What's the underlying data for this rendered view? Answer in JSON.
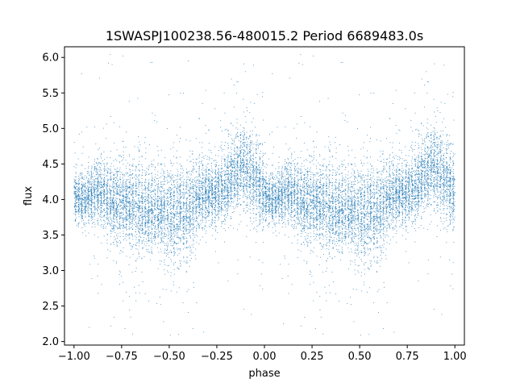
{
  "chart_data": {
    "type": "scatter",
    "title": "1SWASPJ100238.56-480015.2 Period 6689483.0s",
    "xlabel": "phase",
    "ylabel": "flux",
    "xlim": [
      -1.05,
      1.05
    ],
    "ylim": [
      1.95,
      6.15
    ],
    "x_ticks": [
      -1.0,
      -0.75,
      -0.5,
      -0.25,
      0.0,
      0.25,
      0.5,
      0.75,
      1.0
    ],
    "x_tick_labels": [
      "−1.00",
      "−0.75",
      "−0.50",
      "−0.25",
      "0.00",
      "0.25",
      "0.50",
      "0.75",
      "1.00"
    ],
    "y_ticks": [
      2.0,
      2.5,
      3.0,
      3.5,
      4.0,
      4.5,
      5.0,
      5.5,
      6.0
    ],
    "y_tick_labels": [
      "2.0",
      "2.5",
      "3.0",
      "3.5",
      "4.0",
      "4.5",
      "5.0",
      "5.5",
      "6.0"
    ],
    "grid": false,
    "marker_color": "#1f77b4",
    "series": [
      {
        "name": "",
        "profile": {
          "phase": [
            0.0,
            0.05,
            0.1,
            0.15,
            0.2,
            0.25,
            0.3,
            0.35,
            0.4,
            0.45,
            0.5,
            0.55,
            0.6,
            0.65,
            0.7,
            0.75,
            0.8,
            0.85,
            0.9,
            0.95,
            1.0
          ],
          "median_flux": [
            4.05,
            4.0,
            4.1,
            4.1,
            4.0,
            3.95,
            3.9,
            3.85,
            3.85,
            3.85,
            3.8,
            3.8,
            3.85,
            4.0,
            4.1,
            4.1,
            4.2,
            4.4,
            4.45,
            4.3,
            4.1
          ],
          "scatter": [
            0.18,
            0.18,
            0.2,
            0.22,
            0.28,
            0.3,
            0.3,
            0.3,
            0.28,
            0.3,
            0.32,
            0.34,
            0.3,
            0.25,
            0.22,
            0.22,
            0.25,
            0.28,
            0.3,
            0.3,
            0.25
          ]
        },
        "sampled_points": [
          [
            -0.98,
            4.1
          ],
          [
            -0.9,
            4.05
          ],
          [
            -0.8,
            4.0
          ],
          [
            -0.75,
            3.95
          ],
          [
            -0.7,
            3.9
          ],
          [
            -0.6,
            3.85
          ],
          [
            -0.55,
            3.8
          ],
          [
            -0.45,
            3.8
          ],
          [
            -0.4,
            3.85
          ],
          [
            -0.3,
            4.0
          ],
          [
            -0.25,
            4.1
          ],
          [
            -0.15,
            4.4
          ],
          [
            -0.1,
            4.45
          ],
          [
            -0.05,
            4.3
          ],
          [
            0.0,
            4.05
          ],
          [
            0.1,
            4.1
          ],
          [
            0.2,
            4.0
          ],
          [
            0.25,
            3.95
          ],
          [
            0.3,
            3.9
          ],
          [
            0.4,
            3.85
          ],
          [
            0.45,
            3.85
          ],
          [
            0.55,
            3.8
          ],
          [
            0.6,
            3.85
          ],
          [
            0.7,
            4.1
          ],
          [
            0.75,
            4.1
          ],
          [
            0.85,
            4.4
          ],
          [
            0.9,
            4.45
          ],
          [
            0.95,
            4.3
          ],
          [
            1.0,
            4.1
          ],
          [
            -0.45,
            2.1
          ],
          [
            0.55,
            2.1
          ],
          [
            -0.92,
            2.2
          ],
          [
            0.1,
            2.25
          ],
          [
            -0.8,
            5.9
          ],
          [
            0.2,
            5.9
          ],
          [
            -0.1,
            5.8
          ],
          [
            0.85,
            5.8
          ],
          [
            -0.4,
            5.95
          ]
        ]
      }
    ]
  }
}
